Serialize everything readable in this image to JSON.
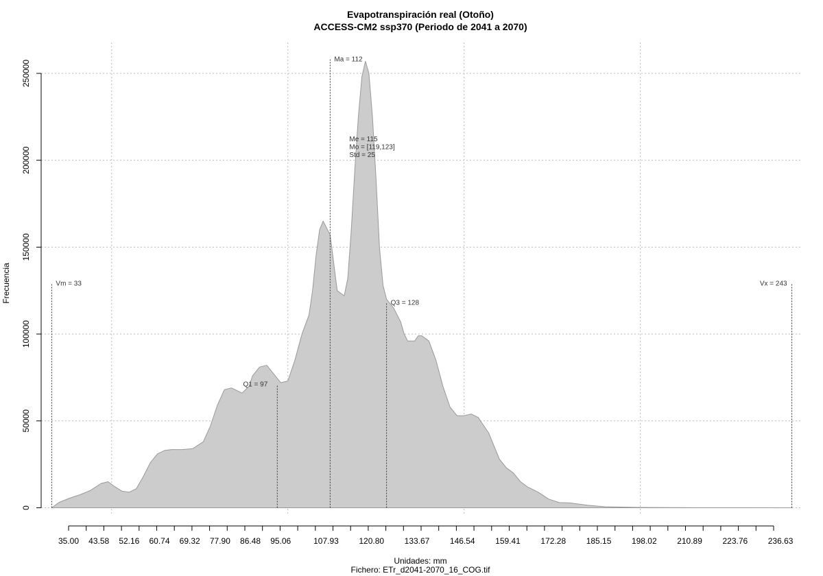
{
  "chart_data": {
    "type": "area",
    "title": "Evapotranspiración real (Otoño)",
    "subtitle": "ACCESS-CM2 ssp370 (Periodo de 2041 a 2070)",
    "xlabel": "Unidades: mm",
    "caption": "Fichero: ETr_d2041-2070_16_COG.tif",
    "ylabel": "Frecuencia",
    "xlim": [
      30,
      246
    ],
    "ylim": [
      0,
      260000
    ],
    "x_tick_labels": [
      "35.00",
      "43.58",
      "52.16",
      "60.74",
      "69.32",
      "77.90",
      "86.48",
      "95.06",
      "107.93",
      "120.80",
      "133.67",
      "146.54",
      "159.41",
      "172.28",
      "185.15",
      "198.02",
      "210.89",
      "223.76",
      "236.63"
    ],
    "y_ticks": [
      0,
      50000,
      100000,
      150000,
      200000,
      250000
    ],
    "y_tick_labels": [
      "0",
      "50000",
      "100000",
      "150000",
      "200000",
      "250000"
    ],
    "grid": true,
    "fill_color": "#cccccc",
    "line_color": "#999999",
    "series": [
      {
        "x": [
          33,
          35,
          38,
          41,
          44,
          47,
          49,
          51,
          53,
          55,
          57,
          59,
          61,
          63,
          65,
          67,
          70,
          73,
          76,
          78,
          80,
          82,
          84,
          86,
          87,
          89,
          90,
          92,
          94,
          96,
          98,
          100,
          102,
          104,
          106,
          107,
          108,
          109,
          110,
          112,
          114,
          116,
          117,
          118,
          119,
          120,
          121,
          122,
          123,
          124,
          125,
          126,
          127,
          128,
          130,
          132,
          133,
          134,
          136,
          137,
          138,
          140,
          142,
          144,
          146,
          148,
          150,
          152,
          154,
          157,
          160,
          162,
          164,
          166,
          168,
          171,
          174,
          177,
          180,
          185,
          190,
          200,
          210,
          220,
          230,
          243
        ],
        "y": [
          0,
          3000,
          5500,
          7500,
          10000,
          14000,
          15000,
          12000,
          9500,
          9000,
          11000,
          18000,
          26000,
          31000,
          33000,
          33500,
          33500,
          34000,
          38000,
          47000,
          59000,
          68000,
          69000,
          67000,
          66000,
          70000,
          76000,
          81000,
          82000,
          77000,
          72000,
          73000,
          85000,
          100000,
          111000,
          125000,
          145000,
          160000,
          165000,
          157000,
          125000,
          122000,
          132000,
          160000,
          195000,
          225000,
          248000,
          257000,
          250000,
          225000,
          190000,
          150000,
          128000,
          120000,
          115000,
          107000,
          100000,
          96000,
          96000,
          99000,
          99000,
          96000,
          85000,
          70000,
          58000,
          53000,
          53000,
          54000,
          52000,
          43000,
          28000,
          23000,
          20000,
          15000,
          12000,
          9000,
          5000,
          3000,
          2800,
          1500,
          600,
          200,
          100,
          50,
          20,
          0
        ]
      }
    ],
    "reference_lines": [
      {
        "label": "Vm = 33",
        "x": 33,
        "y_top": 129000
      },
      {
        "label": "Q1 = 97",
        "x": 97,
        "y_top": 71000
      },
      {
        "label": "Ma = 112",
        "x": 112,
        "y_top": 258000
      },
      {
        "label": "Q3 = 128",
        "x": 128,
        "y_top": 118000
      },
      {
        "label": "Vx = 243",
        "x": 243,
        "y_top": 129000
      }
    ],
    "stats_text": [
      "Me = 115",
      "Mo = [119,123]",
      "Std = 25"
    ]
  }
}
